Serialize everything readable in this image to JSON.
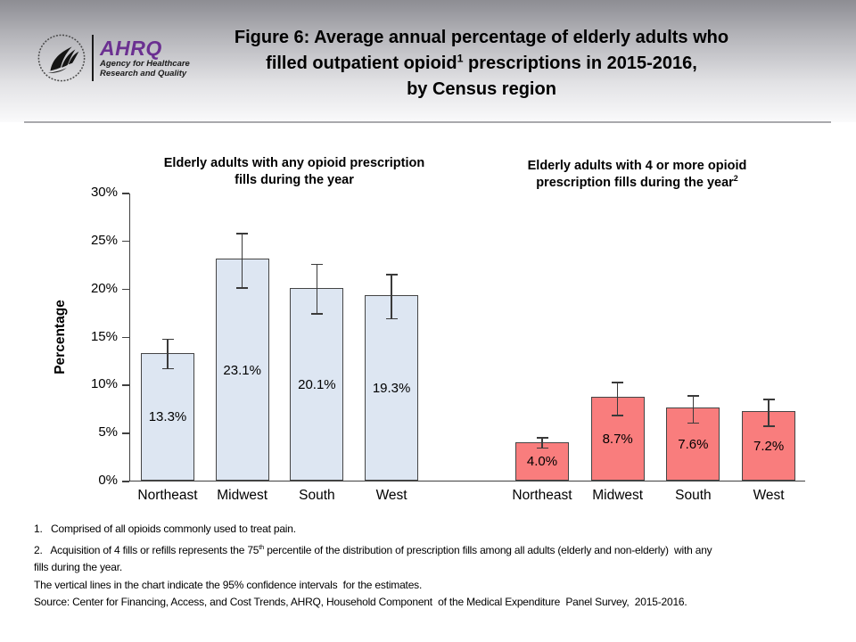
{
  "logo": {
    "acronym": "AHRQ",
    "subtitle_line1": "Agency for Healthcare",
    "subtitle_line2": "Research and Quality",
    "brand_color": "#6b3091"
  },
  "title": {
    "line1": "Figure 6: Average annual percentage of elderly adults who",
    "line2_pre": "filled outpatient opioid",
    "line2_sup": "1",
    "line2_post": " prescriptions in 2015-2016,",
    "line3": "by Census region"
  },
  "chart_titles": {
    "left_line1": "Elderly adults with any opioid prescription",
    "left_line2": "fills during the year",
    "right_line1": "Elderly adults with 4 or more opioid",
    "right_line2": "prescription fills during the year",
    "right_sup": "2"
  },
  "chart_data": {
    "type": "bar",
    "title": "Figure 6: Average annual percentage of elderly adults who filled outpatient opioid prescriptions in 2015-2016, by Census region",
    "ylabel": "Percentage",
    "ylim": [
      0,
      30
    ],
    "grid": false,
    "error_bars": "95% confidence intervals",
    "yticks": [
      {
        "label": "0%",
        "value": 0
      },
      {
        "label": "5%",
        "value": 5
      },
      {
        "label": "10%",
        "value": 10
      },
      {
        "label": "15%",
        "value": 15
      },
      {
        "label": "20%",
        "value": 20
      },
      {
        "label": "25%",
        "value": 25
      },
      {
        "label": "30%",
        "value": 30
      }
    ],
    "groups": [
      {
        "name": "Elderly adults with any opioid prescription fills during the year",
        "color": "#dde6f2",
        "categories": [
          "Northeast",
          "Midwest",
          "South",
          "West"
        ],
        "values": [
          13.3,
          23.1,
          20.1,
          19.3
        ],
        "labels": [
          "13.3%",
          "23.1%",
          "20.1%",
          "19.3%"
        ],
        "ci_low": [
          11.7,
          20.1,
          17.4,
          16.9
        ],
        "ci_high": [
          14.9,
          25.9,
          22.7,
          21.6
        ]
      },
      {
        "name": "Elderly adults with 4 or more opioid prescription fills during the year",
        "color": "#f97d7d",
        "categories": [
          "Northeast",
          "Midwest",
          "South",
          "West"
        ],
        "values": [
          4.0,
          8.7,
          7.6,
          7.2
        ],
        "labels": [
          "4.0%",
          "8.7%",
          "7.6%",
          "7.2%"
        ],
        "ci_low": [
          3.4,
          6.8,
          6.0,
          5.7
        ],
        "ci_high": [
          4.6,
          10.4,
          9.0,
          8.6
        ]
      }
    ]
  },
  "footnotes": {
    "fn1": "1.   Comprised of all opioids commonly used to treat pain.",
    "fn2_pre": "2.   Acquisition of 4 fills or refills represents the 75",
    "fn2_sup": "th",
    "fn2_post": " percentile of the distribution of prescription fills among all adults (elderly and non-elderly)  with any",
    "fn2_cont": "fills during the year.",
    "fn3": "The vertical lines in the chart indicate the 95% confidence intervals  for the estimates.",
    "fn4": "Source: Center for Financing, Access, and Cost Trends, AHRQ, Household Component  of the Medical Expenditure  Panel Survey,  2015-2016."
  }
}
